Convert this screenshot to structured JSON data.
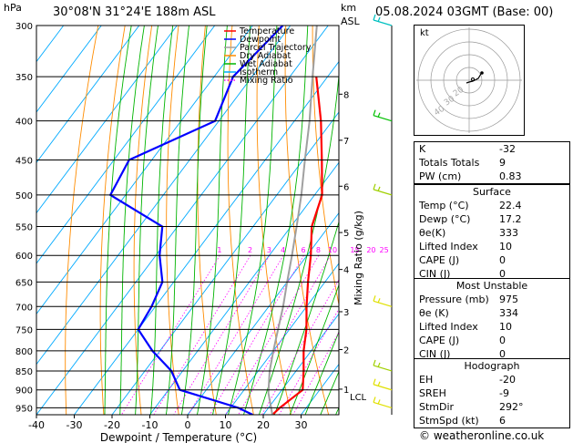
{
  "header": {
    "hpa_label": "hPa",
    "location": "30°08'N  31°24'E  188m  ASL",
    "km_label": "km",
    "asl_label": "ASL",
    "datetime": "05.08.2024  03GMT  (Base: 00)"
  },
  "footer": {
    "copyright": "© weatheronline.co.uk"
  },
  "chart_data": {
    "type": "line",
    "title": "",
    "xlabel": "Dewpoint / Temperature (°C)",
    "ylabel": "hPa",
    "right_axis_label": "Mixing Ratio (g/kg)",
    "x_ticks": [
      -40,
      -30,
      -20,
      -10,
      0,
      10,
      20,
      30
    ],
    "xlim": [
      -40,
      40
    ],
    "pressure_levels": [
      300,
      350,
      400,
      450,
      500,
      550,
      600,
      650,
      700,
      750,
      800,
      850,
      900,
      950
    ],
    "ylim": [
      970,
      300
    ],
    "y_scale": "log",
    "km_ticks": [
      {
        "km": "8",
        "p": 369
      },
      {
        "km": "7",
        "p": 424
      },
      {
        "km": "6",
        "p": 487
      },
      {
        "km": "5",
        "p": 560
      },
      {
        "km": "4",
        "p": 626
      },
      {
        "km": "3",
        "p": 711
      },
      {
        "km": "2",
        "p": 797
      },
      {
        "km": "1",
        "p": 898
      }
    ],
    "lcl_label": "LCL",
    "lcl_p": 908,
    "mixing_ratio_labels": [
      "1",
      "2",
      "3",
      "4",
      "6",
      "8",
      "10",
      "15",
      "20",
      "25"
    ],
    "mixing_ratio_values": [
      1,
      2,
      3,
      4,
      6,
      8,
      10,
      15,
      20,
      25
    ],
    "legend": [
      {
        "name": "Temperature",
        "color": "#ff0000"
      },
      {
        "name": "Dewpoint",
        "color": "#0000ff"
      },
      {
        "name": "Parcel Trajectory",
        "color": "#a0a0a0"
      },
      {
        "name": "Dry Adiabat",
        "color": "#ff8c00"
      },
      {
        "name": "Wet Adiabat",
        "color": "#00b400"
      },
      {
        "name": "Isotherm",
        "color": "#00aaff"
      },
      {
        "name": "Mixing Ratio",
        "color": "#ff00ff"
      }
    ],
    "series": [
      {
        "name": "Temperature",
        "color": "#ff0000",
        "points": [
          [
            970,
            22.4
          ],
          [
            950,
            23.0
          ],
          [
            900,
            25.5
          ],
          [
            850,
            22.0
          ],
          [
            800,
            18.0
          ],
          [
            750,
            14.5
          ],
          [
            700,
            10.0
          ],
          [
            650,
            5.5
          ],
          [
            600,
            1.0
          ],
          [
            550,
            -4.5
          ],
          [
            500,
            -8.0
          ],
          [
            450,
            -15.0
          ],
          [
            400,
            -23.0
          ],
          [
            350,
            -33.0
          ]
        ]
      },
      {
        "name": "Dewpoint",
        "color": "#0000ff",
        "points": [
          [
            970,
            17.2
          ],
          [
            950,
            12.0
          ],
          [
            900,
            -7.0
          ],
          [
            850,
            -13.0
          ],
          [
            800,
            -22.0
          ],
          [
            750,
            -30.0
          ],
          [
            700,
            -31.0
          ],
          [
            650,
            -33.0
          ],
          [
            600,
            -39.0
          ],
          [
            550,
            -44.0
          ],
          [
            500,
            -64.0
          ],
          [
            450,
            -66.0
          ],
          [
            400,
            -51.0
          ],
          [
            350,
            -55.0
          ],
          [
            300,
            -52.0
          ]
        ]
      },
      {
        "name": "Parcel Trajectory",
        "color": "#a0a0a0",
        "points": [
          [
            970,
            22.4
          ],
          [
            908,
            17.0
          ],
          [
            850,
            13.0
          ],
          [
            800,
            10.0
          ],
          [
            750,
            7.0
          ],
          [
            700,
            3.8
          ],
          [
            650,
            0.0
          ],
          [
            600,
            -4.0
          ],
          [
            550,
            -8.5
          ],
          [
            500,
            -13.5
          ],
          [
            450,
            -19.5
          ],
          [
            400,
            -26.0
          ],
          [
            350,
            -34.0
          ],
          [
            300,
            -43.0
          ]
        ]
      }
    ],
    "wind_barbs": [
      {
        "p": 300,
        "color": "#00c0c0"
      },
      {
        "p": 400,
        "color": "#00c000"
      },
      {
        "p": 500,
        "color": "#a0d000"
      },
      {
        "p": 700,
        "color": "#e0e000"
      },
      {
        "p": 850,
        "color": "#a0d000"
      },
      {
        "p": 900,
        "color": "#e0e000"
      },
      {
        "p": 950,
        "color": "#e0e000"
      }
    ]
  },
  "hodograph": {
    "label": "kt",
    "ring_labels": [
      "20",
      "30",
      "40"
    ]
  },
  "indices": {
    "rows": [
      {
        "label": "K",
        "value": "-32"
      },
      {
        "label": "Totals Totals",
        "value": "9"
      },
      {
        "label": "PW (cm)",
        "value": "0.83"
      }
    ]
  },
  "surface": {
    "title": "Surface",
    "rows": [
      {
        "label": "Temp (°C)",
        "value": "22.4"
      },
      {
        "label": "Dewp (°C)",
        "value": "17.2"
      },
      {
        "label": "θe(K)",
        "value": "333"
      },
      {
        "label": "Lifted Index",
        "value": "10"
      },
      {
        "label": "CAPE (J)",
        "value": "0"
      },
      {
        "label": "CIN (J)",
        "value": "0"
      }
    ]
  },
  "most_unstable": {
    "title": "Most Unstable",
    "rows": [
      {
        "label": "Pressure (mb)",
        "value": "975"
      },
      {
        "label": "θe (K)",
        "value": "334"
      },
      {
        "label": "Lifted Index",
        "value": "10"
      },
      {
        "label": "CAPE (J)",
        "value": "0"
      },
      {
        "label": "CIN (J)",
        "value": "0"
      }
    ]
  },
  "hodograph_table": {
    "title": "Hodograph",
    "rows": [
      {
        "label": "EH",
        "value": "-20"
      },
      {
        "label": "SREH",
        "value": "-9"
      },
      {
        "label": "StmDir",
        "value": "292°"
      },
      {
        "label": "StmSpd (kt)",
        "value": "6"
      }
    ]
  }
}
